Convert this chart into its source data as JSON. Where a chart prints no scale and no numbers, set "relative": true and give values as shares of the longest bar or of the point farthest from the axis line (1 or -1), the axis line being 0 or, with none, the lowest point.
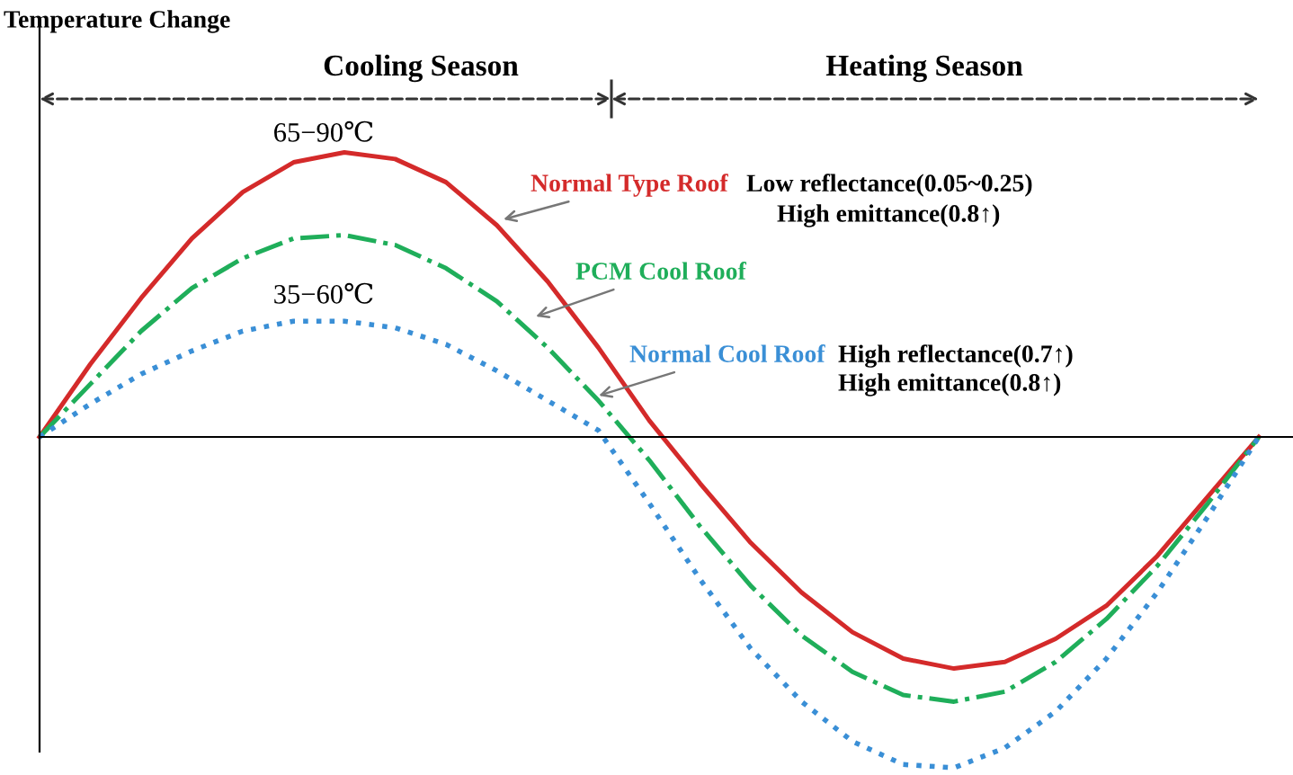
{
  "chart_data": {
    "type": "line",
    "relative": true,
    "ylabel": "Temperature Change",
    "categories": [
      null,
      null,
      null,
      null,
      null,
      null,
      null,
      null,
      null,
      null,
      null,
      null,
      null,
      null,
      null,
      null,
      null,
      null,
      null,
      null,
      null,
      null,
      null,
      null,
      null
    ],
    "series": [
      {
        "name": "Normal Type Roof",
        "color": "#d42a2a",
        "line_style": "solid",
        "values": [
          0,
          0.22,
          0.42,
          0.6,
          0.74,
          0.83,
          0.86,
          0.84,
          0.77,
          0.64,
          0.47,
          0.27,
          0.05,
          -0.14,
          -0.32,
          -0.47,
          -0.59,
          -0.67,
          -0.7,
          -0.68,
          -0.61,
          -0.51,
          -0.36,
          -0.18,
          0
        ]
      },
      {
        "name": "PCM Cool Roof",
        "color": "#1fae5a",
        "line_style": "dashdot",
        "values": [
          0,
          0.16,
          0.32,
          0.45,
          0.54,
          0.6,
          0.61,
          0.58,
          0.51,
          0.41,
          0.27,
          0.11,
          -0.07,
          -0.27,
          -0.45,
          -0.6,
          -0.71,
          -0.78,
          -0.8,
          -0.77,
          -0.68,
          -0.55,
          -0.39,
          -0.2,
          0
        ]
      },
      {
        "name": "Normal Cool Roof",
        "color": "#3a8fd6",
        "line_style": "dotted",
        "values": [
          0,
          0.1,
          0.19,
          0.26,
          0.32,
          0.35,
          0.35,
          0.33,
          0.28,
          0.2,
          0.11,
          0.02,
          -0.2,
          -0.43,
          -0.64,
          -0.8,
          -0.92,
          -0.99,
          -1,
          -0.94,
          -0.83,
          -0.67,
          -0.47,
          -0.24,
          0
        ]
      }
    ],
    "annotations": [
      "Cooling Season",
      "Heating Season",
      "65−90℃",
      "35−60℃",
      "Low reflectance(0.05~0.25)",
      "High emittance(0.8↑)",
      "High reflectance(0.7↑)",
      "High emittance(0.8↑)"
    ],
    "marker": "none",
    "grid": false,
    "legend": false
  }
}
